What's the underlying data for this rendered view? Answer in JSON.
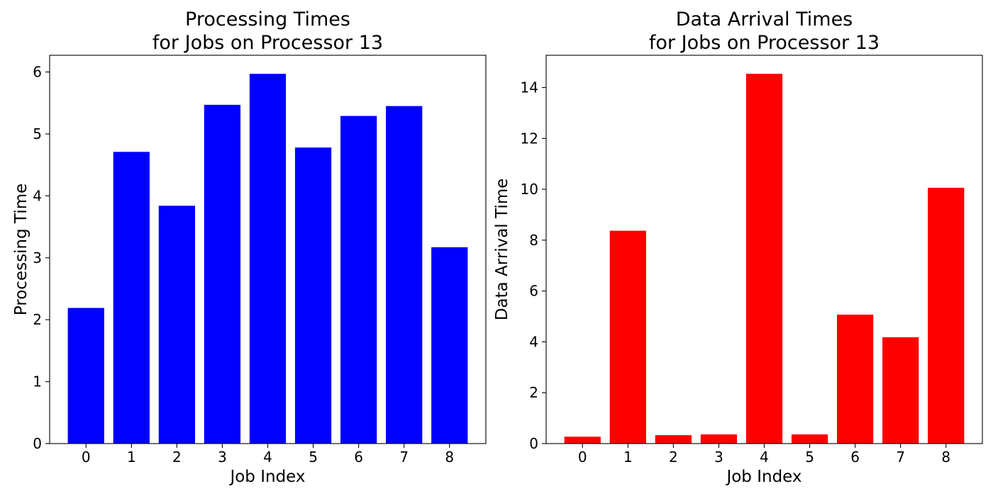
{
  "chart_data": [
    {
      "type": "bar",
      "title": [
        "Processing Times",
        "for Jobs on Processor 13"
      ],
      "xlabel": "Job Index",
      "ylabel": "Processing Time",
      "categories": [
        "0",
        "1",
        "2",
        "3",
        "4",
        "5",
        "6",
        "7",
        "8"
      ],
      "values": [
        2.19,
        4.71,
        3.84,
        5.47,
        5.97,
        4.78,
        5.29,
        5.45,
        3.17
      ],
      "ylim": [
        0,
        6.27
      ],
      "yticks": [
        0,
        1,
        2,
        3,
        4,
        5,
        6
      ],
      "color": "#0000ff",
      "grid": false,
      "legend": "none"
    },
    {
      "type": "bar",
      "title": [
        "Data Arrival Times",
        "for Jobs on Processor 13"
      ],
      "xlabel": "Job Index",
      "ylabel": "Data Arrival Time",
      "categories": [
        "0",
        "1",
        "2",
        "3",
        "4",
        "5",
        "6",
        "7",
        "8"
      ],
      "values": [
        0.27,
        8.37,
        0.33,
        0.36,
        14.54,
        0.36,
        5.07,
        4.18,
        10.06
      ],
      "ylim": [
        0,
        15.27
      ],
      "yticks": [
        0,
        2,
        4,
        6,
        8,
        10,
        12,
        14
      ],
      "color": "#ff0000",
      "grid": false,
      "legend": "none"
    }
  ]
}
